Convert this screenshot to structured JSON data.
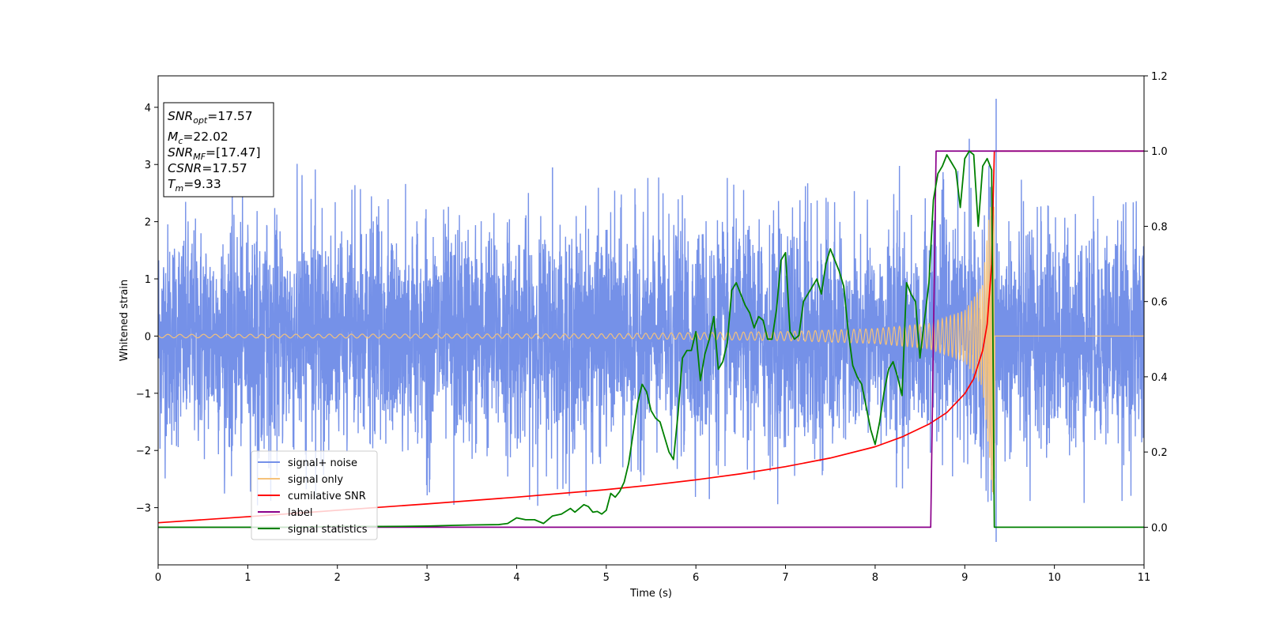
{
  "chart_data": {
    "type": "line",
    "xlabel": "Time (s)",
    "ylabel": "Whitened strain",
    "xlim": [
      0,
      11
    ],
    "ylim_left": [
      -4.0,
      4.55
    ],
    "ylim_right": [
      -0.1,
      1.2
    ],
    "x_ticks": [
      0,
      1,
      2,
      3,
      4,
      5,
      6,
      7,
      8,
      9,
      10,
      11
    ],
    "y_ticks_left": [
      -3,
      -2,
      -1,
      0,
      1,
      2,
      3,
      4
    ],
    "y_ticks_right": [
      0.0,
      0.2,
      0.4,
      0.6,
      0.8,
      1.0,
      1.2
    ],
    "y_tick_labels_left": [
      "−3",
      "−2",
      "−1",
      "0",
      "1",
      "2",
      "3",
      "4"
    ],
    "y_tick_labels_right": [
      "0.0",
      "0.2",
      "0.4",
      "0.6",
      "0.8",
      "1.0",
      "1.2"
    ],
    "grid": false,
    "legend_position": "lower-left",
    "info_box": {
      "position": "upper-left",
      "lines": [
        {
          "symbol": "SNR",
          "sub": "opt",
          "value": "=17.57"
        },
        {
          "symbol": "M",
          "sub": "c",
          "value": "=22.02"
        },
        {
          "symbol": "SNR",
          "sub": "MF",
          "value": "=[17.47]"
        },
        {
          "symbol": "CSNR",
          "sub": "",
          "value": "=17.57"
        },
        {
          "symbol": "T",
          "sub": "m",
          "value": "=9.33"
        }
      ]
    },
    "series": [
      {
        "name": "signal+ noise",
        "axis": "left",
        "color": "#7591e8",
        "description_kind": "noise",
        "noise_sigma": 0.95,
        "spike_peaks": [
          [
            9.35,
            4.15
          ],
          [
            9.35,
            -3.6
          ],
          [
            9.05,
            3.45
          ],
          [
            4.4,
            2.95
          ],
          [
            3.3,
            -2.95
          ],
          [
            6.15,
            -2.85
          ]
        ]
      },
      {
        "name": "signal only",
        "axis": "left",
        "color": "#f5c27a",
        "description_kind": "chirp",
        "merger_time": 9.33,
        "chirp_envelope": [
          [
            0,
            0.03
          ],
          [
            5,
            0.04
          ],
          [
            7,
            0.08
          ],
          [
            8,
            0.13
          ],
          [
            8.6,
            0.22
          ],
          [
            9.0,
            0.45
          ],
          [
            9.2,
            0.9
          ],
          [
            9.3,
            2.6
          ],
          [
            9.33,
            3.0
          ],
          [
            9.34,
            0.0
          ],
          [
            11,
            0.0
          ]
        ]
      },
      {
        "name": "cumilative SNR",
        "axis": "right",
        "color": "#ff0000",
        "x": [
          0,
          1,
          2,
          3,
          4,
          5,
          5.5,
          6,
          6.5,
          7,
          7.5,
          8,
          8.3,
          8.6,
          8.8,
          9.0,
          9.1,
          9.2,
          9.25,
          9.3,
          9.33,
          9.35,
          11
        ],
        "y": [
          0.012,
          0.028,
          0.045,
          0.062,
          0.08,
          0.1,
          0.112,
          0.126,
          0.142,
          0.161,
          0.184,
          0.214,
          0.24,
          0.274,
          0.305,
          0.355,
          0.395,
          0.47,
          0.54,
          0.7,
          1.0,
          1.0,
          1.0
        ]
      },
      {
        "name": "label",
        "axis": "right",
        "color": "#8b008b",
        "x": [
          0,
          8.62,
          8.68,
          11
        ],
        "y": [
          0.0,
          0.0,
          1.0,
          1.0
        ]
      },
      {
        "name": "signal statistics",
        "axis": "right",
        "color": "#008000",
        "x": [
          0,
          0.5,
          1,
          1.5,
          2,
          2.5,
          3,
          3.3,
          3.5,
          3.8,
          3.9,
          4.0,
          4.1,
          4.2,
          4.3,
          4.4,
          4.5,
          4.6,
          4.65,
          4.7,
          4.75,
          4.8,
          4.85,
          4.9,
          4.95,
          5.0,
          5.05,
          5.1,
          5.15,
          5.2,
          5.25,
          5.3,
          5.35,
          5.4,
          5.45,
          5.5,
          5.55,
          5.6,
          5.65,
          5.7,
          5.75,
          5.8,
          5.85,
          5.9,
          5.95,
          6.0,
          6.05,
          6.1,
          6.15,
          6.2,
          6.25,
          6.3,
          6.35,
          6.4,
          6.45,
          6.5,
          6.55,
          6.6,
          6.65,
          6.7,
          6.75,
          6.8,
          6.85,
          6.9,
          6.95,
          7.0,
          7.05,
          7.1,
          7.15,
          7.2,
          7.25,
          7.3,
          7.35,
          7.4,
          7.45,
          7.5,
          7.55,
          7.6,
          7.65,
          7.7,
          7.75,
          7.8,
          7.85,
          7.9,
          7.95,
          8.0,
          8.05,
          8.1,
          8.15,
          8.2,
          8.25,
          8.3,
          8.35,
          8.4,
          8.45,
          8.5,
          8.55,
          8.6,
          8.65,
          8.7,
          8.75,
          8.8,
          8.85,
          8.9,
          8.95,
          9.0,
          9.05,
          9.1,
          9.15,
          9.2,
          9.25,
          9.3,
          9.33,
          9.35,
          9.4,
          10,
          11
        ],
        "y": [
          0.0,
          0.0,
          0.0,
          0.0,
          0.002,
          0.002,
          0.003,
          0.005,
          0.006,
          0.007,
          0.01,
          0.025,
          0.02,
          0.02,
          0.01,
          0.03,
          0.035,
          0.05,
          0.04,
          0.05,
          0.06,
          0.055,
          0.04,
          0.042,
          0.035,
          0.045,
          0.09,
          0.08,
          0.095,
          0.12,
          0.17,
          0.25,
          0.33,
          0.38,
          0.36,
          0.31,
          0.29,
          0.28,
          0.24,
          0.2,
          0.18,
          0.3,
          0.45,
          0.47,
          0.47,
          0.52,
          0.39,
          0.46,
          0.5,
          0.56,
          0.42,
          0.44,
          0.49,
          0.63,
          0.65,
          0.62,
          0.59,
          0.57,
          0.53,
          0.56,
          0.55,
          0.5,
          0.5,
          0.58,
          0.71,
          0.73,
          0.52,
          0.5,
          0.51,
          0.6,
          0.62,
          0.64,
          0.66,
          0.62,
          0.7,
          0.74,
          0.71,
          0.68,
          0.64,
          0.52,
          0.43,
          0.4,
          0.38,
          0.32,
          0.26,
          0.22,
          0.28,
          0.36,
          0.42,
          0.44,
          0.4,
          0.35,
          0.65,
          0.62,
          0.6,
          0.45,
          0.55,
          0.65,
          0.87,
          0.94,
          0.96,
          0.99,
          0.97,
          0.95,
          0.85,
          0.98,
          1.0,
          0.99,
          0.8,
          0.96,
          0.98,
          0.95,
          0.0,
          0.0,
          0.0,
          0.0,
          0.0
        ]
      }
    ]
  }
}
